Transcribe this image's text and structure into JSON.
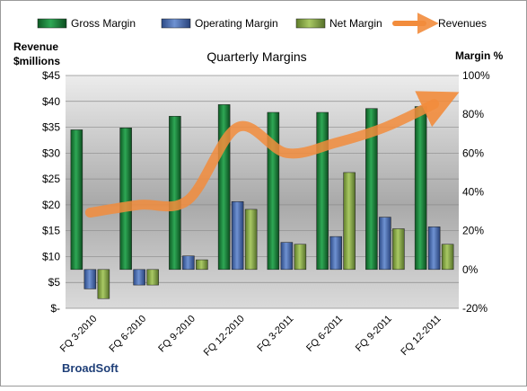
{
  "chart_data": {
    "type": "bar",
    "title": "Quarterly Margins",
    "y_left_label_line1": "Revenue",
    "y_left_label_line2": "$millions",
    "y_right_label": "Margin %",
    "footer": "BroadSoft",
    "categories": [
      "FQ 3-2010",
      "FQ 6-2010",
      "FQ 9-2010",
      "FQ 12-2010",
      "FQ 3-2011",
      "FQ 6-2011",
      "FQ 9-2011",
      "FQ 12-2011"
    ],
    "left_ticks": [
      "$-",
      "$5",
      "$10",
      "$15",
      "$20",
      "$25",
      "$30",
      "$35",
      "$40",
      "$45"
    ],
    "right_ticks": [
      "-20%",
      "0%",
      "20%",
      "40%",
      "60%",
      "80%",
      "100%"
    ],
    "ylim_left": [
      0,
      45
    ],
    "ylim_right": [
      -20,
      100
    ],
    "legend_position": "top",
    "grid": true,
    "series": [
      {
        "name": "Gross Margin",
        "axis": "right",
        "color": "#1e8a3c",
        "values": [
          72,
          73,
          79,
          85,
          81,
          81,
          83,
          84
        ]
      },
      {
        "name": "Operating Margin",
        "axis": "right",
        "color": "#4a6fb5",
        "values": [
          -10,
          -8,
          7,
          35,
          14,
          17,
          27,
          22
        ]
      },
      {
        "name": "Net Margin",
        "axis": "right",
        "color": "#8db04a",
        "values": [
          -15,
          -8,
          5,
          31,
          13,
          50,
          21,
          13
        ]
      },
      {
        "name": "Revenues",
        "axis": "left",
        "color": "#f28c3c",
        "type": "line",
        "values": [
          18.5,
          20,
          21,
          35,
          30,
          32,
          35,
          39.5
        ]
      }
    ]
  }
}
